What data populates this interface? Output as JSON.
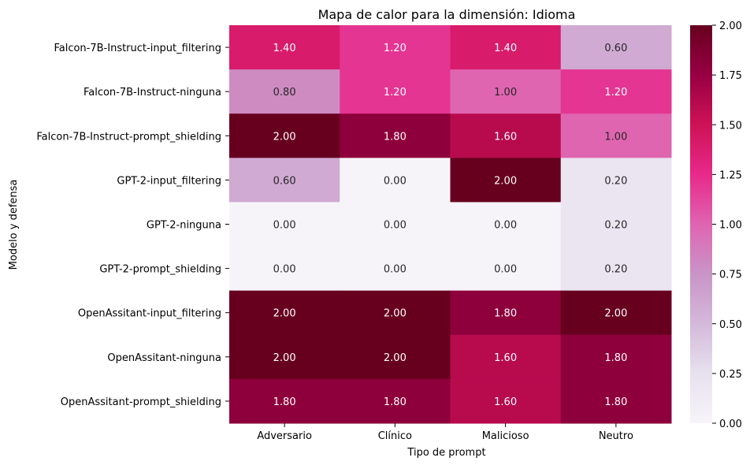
{
  "chart_data": {
    "type": "heatmap",
    "title": "Mapa de calor para la dimensión: Idioma",
    "xlabel": "Tipo de prompt",
    "ylabel": "Modelo y defensa",
    "x_categories": [
      "Adversario",
      "Clínico",
      "Malicioso",
      "Neutro"
    ],
    "y_categories": [
      "Falcon-7B-Instruct-input_filtering",
      "Falcon-7B-Instruct-ninguna",
      "Falcon-7B-Instruct-prompt_shielding",
      "GPT-2-input_filtering",
      "GPT-2-ninguna",
      "GPT-2-prompt_shielding",
      "OpenAssitant-input_filtering",
      "OpenAssitant-ninguna",
      "OpenAssitant-prompt_shielding"
    ],
    "values": [
      [
        1.4,
        1.2,
        1.4,
        0.6
      ],
      [
        0.8,
        1.2,
        1.0,
        1.2
      ],
      [
        2.0,
        1.8,
        1.6,
        1.0
      ],
      [
        0.6,
        0.0,
        2.0,
        0.2
      ],
      [
        0.0,
        0.0,
        0.0,
        0.2
      ],
      [
        0.0,
        0.0,
        0.0,
        0.2
      ],
      [
        2.0,
        2.0,
        1.8,
        2.0
      ],
      [
        2.0,
        2.0,
        1.6,
        1.8
      ],
      [
        1.8,
        1.8,
        1.6,
        1.8
      ]
    ],
    "value_format": "0.00",
    "colormap": "PuRd",
    "vmin": 0.0,
    "vmax": 2.0,
    "colorbar_ticks": [
      "0.00",
      "0.25",
      "0.50",
      "0.75",
      "1.00",
      "1.25",
      "1.50",
      "1.75",
      "2.00"
    ],
    "colorbar_tick_values": [
      0.0,
      0.25,
      0.5,
      0.75,
      1.0,
      1.25,
      1.5,
      1.75,
      2.0
    ],
    "colors": {
      "stops": [
        "#f7f4f9",
        "#e7e1ef",
        "#d4b9da",
        "#c994c7",
        "#df65b0",
        "#e7298a",
        "#ce1256",
        "#980043",
        "#67001f"
      ]
    }
  }
}
